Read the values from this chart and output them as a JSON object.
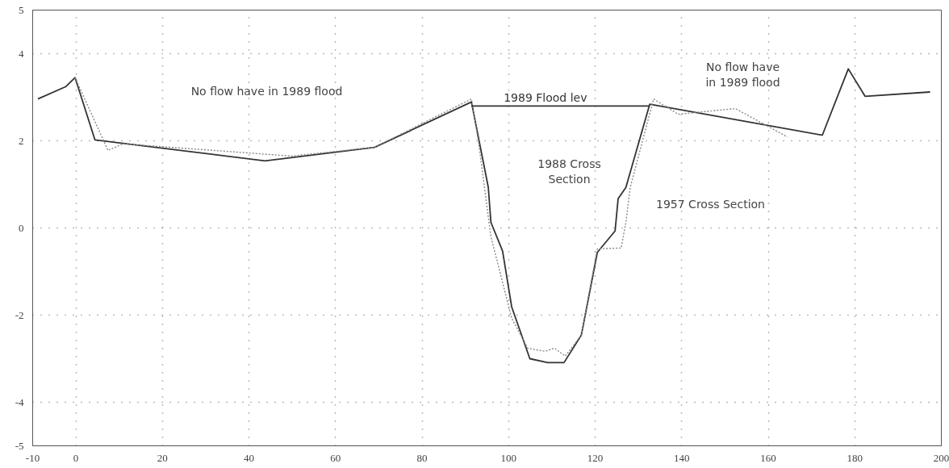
{
  "chart_data": {
    "type": "line",
    "xlim": [
      -10,
      200
    ],
    "ylim": [
      -5,
      5
    ],
    "xticks": [
      -10,
      0,
      20,
      40,
      60,
      80,
      100,
      120,
      140,
      160,
      180,
      200
    ],
    "yticks": [
      -5,
      -4,
      -2,
      0,
      2,
      4,
      5
    ],
    "grid": true,
    "series": [
      {
        "color": "#333333",
        "line_style": "solid",
        "x": [
          -8.8,
          -2.4,
          -0.2,
          4.4,
          43.7,
          69,
          91.4,
          95.3,
          95.9,
          98.6,
          100.7,
          104.9,
          109,
          112.8,
          116.8,
          120.5,
          124.6,
          125.3,
          127.1,
          132.6,
          172.5,
          178.5,
          182.4,
          197.4
        ],
        "values": [
          2.96,
          3.24,
          3.45,
          2.02,
          1.54,
          1.85,
          2.89,
          0.93,
          0.13,
          -0.53,
          -1.81,
          -3.0,
          -3.09,
          -3.09,
          -2.46,
          -0.56,
          -0.07,
          0.67,
          0.93,
          2.84,
          2.13,
          3.65,
          3.02,
          3.12
        ]
      },
      {
        "color": "#888888",
        "line_style": "dotted",
        "x": [
          -0.2,
          7.4,
          10.9,
          49.8,
          69,
          91.4,
          93,
          95.9,
          100.7,
          104.4,
          108.4,
          110.6,
          113.1,
          116.8,
          120.5,
          126,
          127.1,
          128.1,
          133.5,
          139.2,
          152.4,
          164.4
        ],
        "values": [
          3.45,
          1.78,
          1.93,
          1.65,
          1.85,
          2.96,
          2.0,
          -0.2,
          -2.07,
          -2.76,
          -2.83,
          -2.76,
          -2.94,
          -2.46,
          -0.48,
          -0.46,
          0.13,
          0.93,
          2.96,
          2.61,
          2.74,
          2.09
        ]
      },
      {
        "name": "1989 Flood lev",
        "color": "#333333",
        "line_style": "solid",
        "x": [
          91.4,
          132.6
        ],
        "values": [
          2.8,
          2.8
        ]
      }
    ],
    "annotations": [
      "No flow have in 1989 flood",
      "No flow have\nin 1989 flood",
      "1988 Cross\nSection",
      "1957 Cross Section"
    ]
  }
}
